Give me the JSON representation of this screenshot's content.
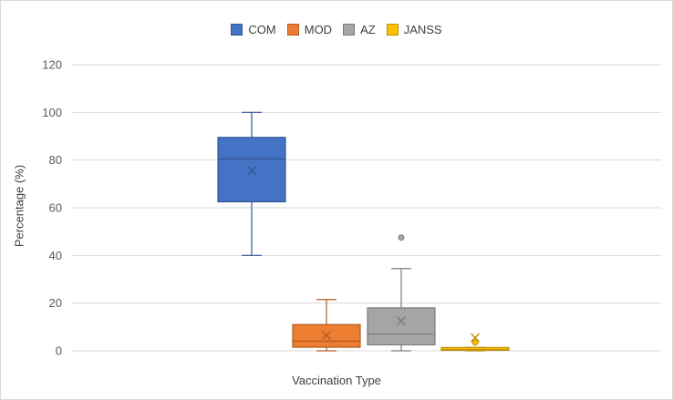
{
  "chart_data": {
    "type": "box",
    "title": "",
    "xlabel": "Vaccination Type",
    "ylabel": "Percentage (%)",
    "ylim": [
      0,
      120
    ],
    "yticks": [
      0,
      20,
      40,
      60,
      80,
      100,
      120
    ],
    "grid": true,
    "legend_position": "top",
    "series": [
      {
        "name": "COM",
        "color": "#4472C4",
        "min": 40,
        "q1": 62.5,
        "median": 80.5,
        "q3": 89.5,
        "max": 100,
        "mean": 75.5,
        "outliers": []
      },
      {
        "name": "MOD",
        "color": "#ED7D31",
        "min": 0,
        "q1": 1.5,
        "median": 4,
        "q3": 11,
        "max": 21.5,
        "mean": 6.5,
        "outliers": []
      },
      {
        "name": "AZ",
        "color": "#A5A5A5",
        "min": 0,
        "q1": 2.5,
        "median": 7,
        "q3": 18,
        "max": 34.5,
        "mean": 12.5,
        "outliers": [
          47.5
        ]
      },
      {
        "name": "JANSS",
        "color": "#FFC000",
        "min": 0,
        "q1": 0.2,
        "median": 0.6,
        "q3": 1.4,
        "max": 1.4,
        "mean": 5.5,
        "outliers": [
          3.5
        ]
      }
    ]
  }
}
